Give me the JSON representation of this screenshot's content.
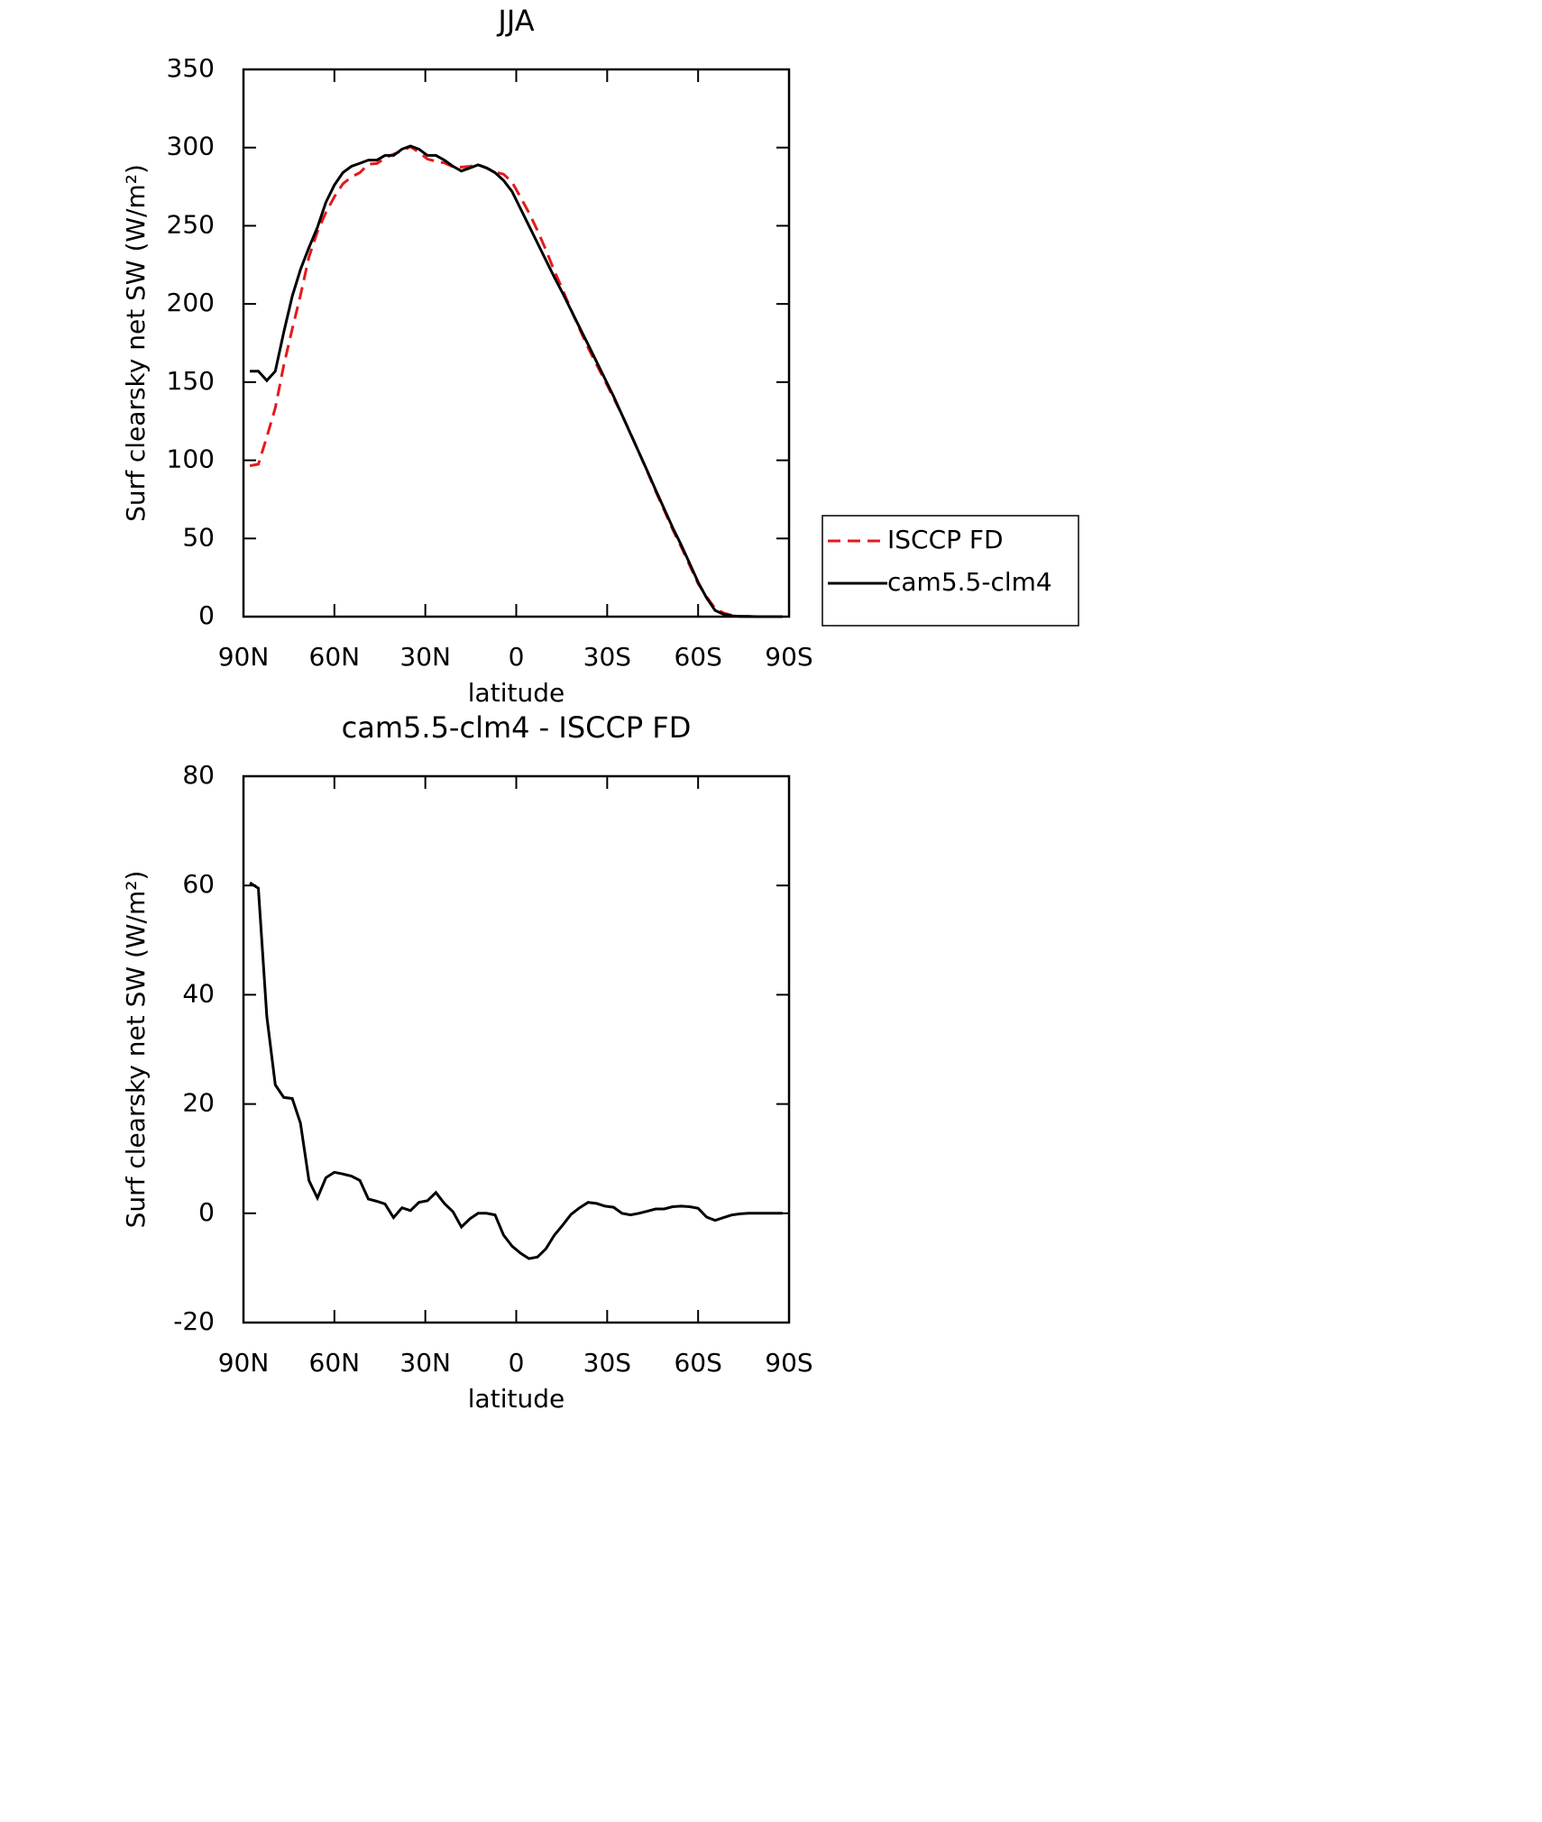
{
  "chart_data": [
    {
      "type": "line",
      "title": "JJA",
      "xlabel": "latitude",
      "ylabel": "Surf clearsky net SW (W/m²)",
      "x": [
        87.9,
        85.1,
        82.3,
        79.5,
        76.7,
        73.9,
        71.2,
        68.4,
        65.6,
        62.8,
        60.0,
        57.2,
        54.4,
        51.6,
        48.8,
        46.0,
        43.3,
        40.5,
        37.7,
        34.9,
        32.1,
        29.3,
        26.5,
        23.7,
        20.9,
        18.1,
        15.3,
        12.6,
        9.8,
        7.0,
        4.2,
        1.4,
        -1.4,
        -4.2,
        -7.0,
        -9.8,
        -12.6,
        -15.3,
        -18.1,
        -20.9,
        -23.7,
        -26.5,
        -29.3,
        -32.1,
        -34.9,
        -37.7,
        -40.5,
        -43.3,
        -46.0,
        -48.8,
        -51.6,
        -54.4,
        -57.2,
        -60.0,
        -62.8,
        -65.6,
        -68.4,
        -71.2,
        -73.9,
        -76.7,
        -79.5,
        -82.3,
        -85.1,
        -87.9
      ],
      "series": [
        {
          "name": "ISCCP FD",
          "color": "#e41a1c",
          "line_style": "dashed",
          "values": [
            96.5,
            97.5,
            115,
            133.5,
            160.8,
            184,
            205.5,
            230,
            246.2,
            258.5,
            268.5,
            276.8,
            281.2,
            284,
            289.4,
            289.8,
            293.3,
            295.8,
            298,
            300.5,
            297,
            292.7,
            291.2,
            290.2,
            287.7,
            287.5,
            288,
            289,
            287,
            284.3,
            283,
            278,
            268.3,
            258.3,
            247,
            234.5,
            221,
            209.2,
            196.2,
            184,
            172,
            161.2,
            150.7,
            139.9,
            129,
            117.3,
            105,
            92.6,
            80.2,
            68.2,
            55.8,
            44.7,
            32.8,
            21.1,
            12.7,
            5.3,
            2.3,
            0.8,
            0.3,
            0.1,
            0,
            0,
            0,
            0
          ]
        },
        {
          "name": "cam5.5-clm4",
          "color": "#000000",
          "line_style": "solid",
          "values": [
            157,
            157,
            151,
            157,
            182,
            205,
            222,
            236,
            249,
            265,
            276,
            284,
            288,
            290,
            292,
            292,
            295,
            295,
            299,
            301,
            299,
            295,
            295,
            292,
            288,
            285,
            287,
            289,
            287,
            284,
            279,
            272,
            261,
            250,
            239,
            228,
            217,
            207,
            196,
            185,
            174,
            163,
            152,
            141,
            129,
            117,
            105,
            93,
            81,
            69,
            57,
            46,
            34,
            22,
            12,
            4,
            1.5,
            0.5,
            0.2,
            0.1,
            0,
            0,
            0,
            0
          ]
        }
      ],
      "xlim": [
        90,
        -90
      ],
      "xticks": [
        {
          "value": 90,
          "label": "90N"
        },
        {
          "value": 60,
          "label": "60N"
        },
        {
          "value": 30,
          "label": "30N"
        },
        0,
        {
          "value": -30,
          "label": "30S"
        },
        {
          "value": -60,
          "label": "60S"
        },
        {
          "value": -90,
          "label": "90S"
        }
      ],
      "ylim": [
        0,
        350
      ],
      "yticks": [
        0,
        50,
        100,
        150,
        200,
        250,
        300,
        350
      ],
      "legend": "right"
    },
    {
      "type": "line",
      "title": "cam5.5-clm4 - ISCCP FD",
      "xlabel": "latitude",
      "ylabel": "Surf clearsky net SW (W/m²)",
      "x": [
        87.9,
        85.1,
        82.3,
        79.5,
        76.7,
        73.9,
        71.2,
        68.4,
        65.6,
        62.8,
        60.0,
        57.2,
        54.4,
        51.6,
        48.8,
        46.0,
        43.3,
        40.5,
        37.7,
        34.9,
        32.1,
        29.3,
        26.5,
        23.7,
        20.9,
        18.1,
        15.3,
        12.6,
        9.8,
        7.0,
        4.2,
        1.4,
        -1.4,
        -4.2,
        -7.0,
        -9.8,
        -12.6,
        -15.3,
        -18.1,
        -20.9,
        -23.7,
        -26.5,
        -29.3,
        -32.1,
        -34.9,
        -37.7,
        -40.5,
        -43.3,
        -46.0,
        -48.8,
        -51.6,
        -54.4,
        -57.2,
        -60.0,
        -62.8,
        -65.6,
        -68.4,
        -71.2,
        -73.9,
        -76.7,
        -79.5,
        -82.3,
        -85.1,
        -87.9
      ],
      "series": [
        {
          "color": "#000000",
          "line_style": "solid",
          "values": [
            60.5,
            59.5,
            36,
            23.5,
            21.2,
            21,
            16.5,
            6,
            2.8,
            6.5,
            7.5,
            7.2,
            6.8,
            6,
            2.6,
            2.2,
            1.7,
            -0.8,
            1,
            0.5,
            2,
            2.3,
            3.8,
            1.8,
            0.3,
            -2.5,
            -1,
            0,
            0,
            -0.3,
            -4,
            -6,
            -7.3,
            -8.3,
            -8,
            -6.5,
            -4,
            -2.2,
            -0.2,
            1,
            2,
            1.8,
            1.3,
            1.1,
            0,
            -0.3,
            0,
            0.4,
            0.8,
            0.8,
            1.2,
            1.3,
            1.2,
            0.9,
            -0.7,
            -1.3,
            -0.8,
            -0.3,
            -0.1,
            0,
            0,
            0,
            0,
            0
          ]
        }
      ],
      "xlim": [
        90,
        -90
      ],
      "xticks": [
        {
          "value": 90,
          "label": "90N"
        },
        {
          "value": 60,
          "label": "60N"
        },
        {
          "value": 30,
          "label": "30N"
        },
        0,
        {
          "value": -30,
          "label": "30S"
        },
        {
          "value": -60,
          "label": "60S"
        },
        {
          "value": -90,
          "label": "90S"
        }
      ],
      "ylim": [
        -20,
        80
      ],
      "yticks": [
        -20,
        0,
        20,
        40,
        60,
        80
      ]
    }
  ]
}
